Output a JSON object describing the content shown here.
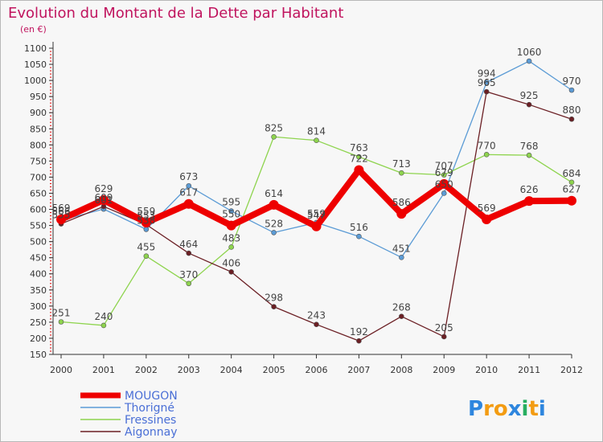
{
  "chart_data": {
    "type": "line",
    "title": "Evolution du Montant de la Dette par Habitant",
    "unit_label": "(en €)",
    "x": [
      "2000",
      "2001",
      "2002",
      "2003",
      "2004",
      "2005",
      "2006",
      "2007",
      "2008",
      "2009",
      "2010",
      "2011",
      "2012"
    ],
    "y_ticks": [
      150,
      200,
      250,
      300,
      350,
      400,
      450,
      500,
      550,
      600,
      650,
      700,
      750,
      800,
      850,
      900,
      950,
      1000,
      1050,
      1100
    ],
    "ylim": [
      150,
      1100
    ],
    "grid": false,
    "legend_position": "bottom-left",
    "series": [
      {
        "name": "Thorigné",
        "color": "#5b9bd5",
        "values": [
          566,
          601,
          538,
          673,
          595,
          528,
          559,
          516,
          451,
          650,
          994,
          1060,
          970
        ],
        "labels": [
          "566",
          "601",
          "538",
          "673",
          "595",
          "528",
          "559",
          "516",
          "451",
          "650",
          "994",
          "1060",
          "970"
        ]
      },
      {
        "name": "Fressines",
        "color": "#8ed44e",
        "values": [
          251,
          240,
          455,
          370,
          483,
          825,
          814,
          763,
          713,
          707,
          770,
          768,
          684
        ],
        "labels": [
          "251",
          "240",
          "455",
          "370",
          "483",
          "825",
          "814",
          "763",
          "713",
          "707",
          "770",
          "768",
          "684"
        ]
      },
      {
        "name": "Aigonnay",
        "color": "#6b1f24",
        "values": [
          555,
          609,
          553,
          464,
          406,
          298,
          243,
          192,
          268,
          205,
          965,
          925,
          880
        ],
        "labels": [
          "555",
          "609",
          "553",
          "464",
          "406",
          "298",
          "243",
          "192",
          "268",
          "205",
          "965",
          "925",
          "880"
        ]
      },
      {
        "name": "MOUGON",
        "color": "#ee0000",
        "values": [
          569,
          629,
          559,
          617,
          550,
          614,
          547,
          722,
          586,
          679,
          569,
          626,
          627
        ],
        "labels": [
          "569",
          "629",
          "559",
          "617",
          "550",
          "614",
          "547",
          "722",
          "586",
          "679",
          "569",
          "626",
          "627"
        ]
      }
    ]
  },
  "legend": {
    "items": [
      {
        "name": "MOUGON",
        "color": "#ee0000"
      },
      {
        "name": "Thorigné",
        "color": "#5b9bd5"
      },
      {
        "name": "Fressines",
        "color": "#8ed44e"
      },
      {
        "name": "Aigonnay",
        "color": "#6b1f24"
      }
    ]
  },
  "logo": {
    "text": "Proxiti"
  },
  "colors": {
    "title": "#c0145e",
    "axis": "#333333",
    "label": "#444444",
    "tick_red": "#e00000"
  }
}
